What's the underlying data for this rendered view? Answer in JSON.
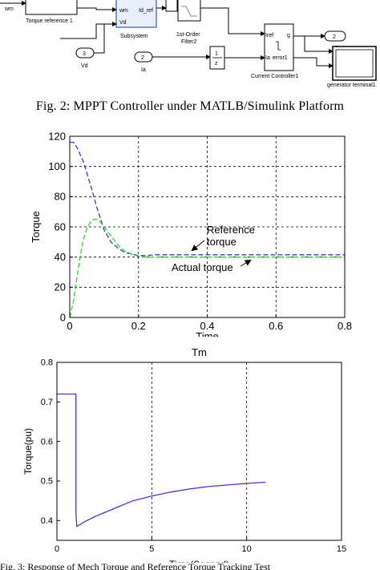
{
  "simulink": {
    "wm_label": "wm",
    "torque_ref_block": "Torque reference 1",
    "subsystem_block": "Subsystem",
    "subsystem_in1": "wm",
    "subsystem_in2": "Vd",
    "subsystem_out": "Id_ref",
    "filter_block": "1st-Order\nFilter2",
    "vd_port_num": "3",
    "vd_label": "Vd",
    "ia_port_num": "2",
    "ia_label": "Ia",
    "z_num": "1",
    "z_den": "z",
    "cc_block": "Current Controller1",
    "cc_in1": "Iref",
    "cc_in2": "Ia",
    "cc_out1": "g",
    "cc_out2": "error1",
    "out_port_num": "2",
    "p_label": "P",
    "gen_terminal": "generator terminal1"
  },
  "caption": "Fig. 2: MPPT Controller under MATLB/Simulink Platform",
  "chart_data": [
    {
      "type": "line",
      "title": "",
      "xlabel": "Time",
      "ylabel": "Torque",
      "xlim": [
        0,
        0.8
      ],
      "ylim": [
        0,
        120
      ],
      "xticks": [
        "0",
        "0.2",
        "0.4",
        "0.6",
        "0.8"
      ],
      "yticks": [
        "0",
        "20",
        "40",
        "60",
        "80",
        "100",
        "120"
      ],
      "grid": true,
      "series": [
        {
          "name": "Reference torque",
          "color": "#2f3fd0",
          "style": "dashed",
          "x": [
            0,
            0.01,
            0.02,
            0.04,
            0.06,
            0.08,
            0.1,
            0.12,
            0.14,
            0.16,
            0.18,
            0.2,
            0.22,
            0.25,
            0.3,
            0.4,
            0.5,
            0.6,
            0.7,
            0.8
          ],
          "y": [
            116,
            116,
            113,
            103,
            88,
            72,
            58,
            50,
            46,
            43,
            42,
            41,
            41,
            41.5,
            41.5,
            41.5,
            41.5,
            41.5,
            41.5,
            41.5
          ]
        },
        {
          "name": "Actual torque",
          "color": "#22dd22",
          "style": "dashed",
          "x": [
            0,
            0.01,
            0.02,
            0.03,
            0.04,
            0.05,
            0.06,
            0.07,
            0.08,
            0.09,
            0.1,
            0.12,
            0.14,
            0.16,
            0.18,
            0.2,
            0.22,
            0.25,
            0.3,
            0.4,
            0.5,
            0.6,
            0.7,
            0.8
          ],
          "y": [
            0,
            10,
            25,
            40,
            52,
            59,
            63,
            65,
            65,
            63,
            60,
            54,
            48,
            44,
            42,
            40.5,
            40,
            40,
            40,
            40,
            40,
            40,
            40,
            40
          ]
        }
      ],
      "annotations": [
        "Reference\ntorque",
        "Actual torque"
      ]
    },
    {
      "type": "line",
      "title": "Tm",
      "xlabel": "Time(Second)",
      "ylabel": "Torque(pu)",
      "xlim": [
        0,
        15
      ],
      "ylim": [
        0.35,
        0.8
      ],
      "xticks": [
        "0",
        "5",
        "10",
        "15"
      ],
      "yticks": [
        "0.4",
        "0.5",
        "0.6",
        "0.7",
        "0.8"
      ],
      "grid": "partial",
      "series": [
        {
          "name": "",
          "color": "#3b3bd6",
          "style": "solid",
          "x": [
            0,
            0.95,
            1.0,
            1.0,
            1.05,
            1.5,
            2,
            3,
            4,
            5,
            6,
            7,
            8,
            9,
            10,
            11
          ],
          "y": [
            0.72,
            0.72,
            0.72,
            0.42,
            0.385,
            0.398,
            0.41,
            0.43,
            0.45,
            0.462,
            0.472,
            0.48,
            0.486,
            0.49,
            0.494,
            0.497
          ]
        }
      ]
    }
  ],
  "bottom_text": "Fig. 3: Response of Mech Torque and Reference Torque Tracking Test"
}
